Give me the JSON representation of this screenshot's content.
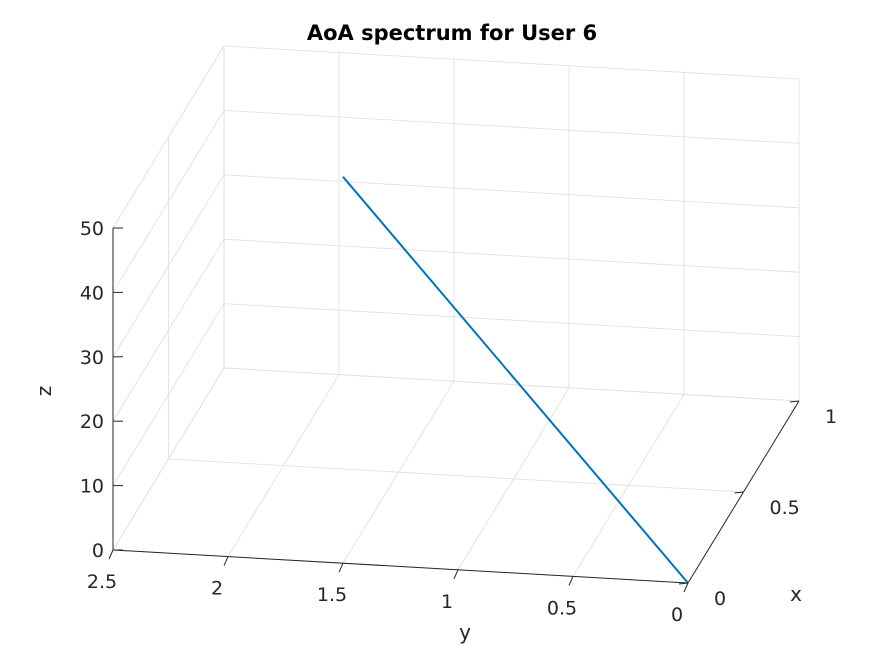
{
  "chart_data": {
    "type": "line",
    "title": "AoA spectrum for User 6",
    "xlabel": "x",
    "ylabel": "y",
    "zlabel": "z",
    "xlim": [
      0,
      1
    ],
    "ylim": [
      0,
      2.5
    ],
    "zlim": [
      0,
      50
    ],
    "x_ticks": [
      "0",
      "0.5",
      "1"
    ],
    "y_ticks": [
      "0",
      "0.5",
      "1",
      "1.5",
      "2",
      "2.5"
    ],
    "z_ticks": [
      "0",
      "10",
      "20",
      "30",
      "40",
      "50"
    ],
    "grid": true,
    "series": [
      {
        "x": [
          0,
          0
        ],
        "y": [
          0,
          1.5
        ],
        "z": [
          0,
          60
        ],
        "color": "#0072BD"
      }
    ]
  }
}
